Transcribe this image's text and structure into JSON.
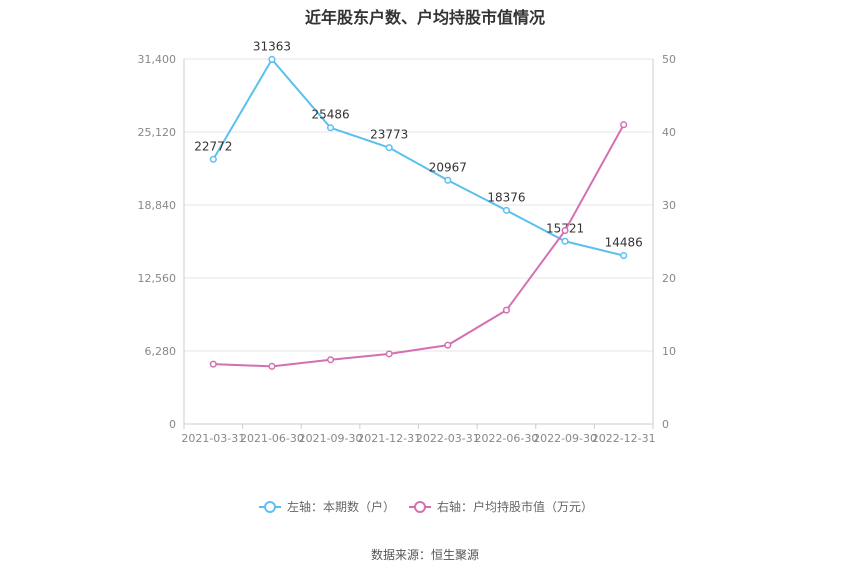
{
  "chart_data": {
    "type": "line",
    "title": "近年股东户数、户均持股市值情况",
    "categories": [
      "2021-03-31",
      "2021-06-30",
      "2021-09-30",
      "2021-12-31",
      "2022-03-31",
      "2022-06-30",
      "2022-09-30",
      "2022-12-31"
    ],
    "left_axis": {
      "min": 0,
      "max": 31400,
      "ticks": [
        "0",
        "6,280",
        "12,560",
        "18,840",
        "25,120",
        "31,400"
      ],
      "tick_values": [
        0,
        6280,
        12560,
        18840,
        25120,
        31400
      ]
    },
    "right_axis": {
      "min": 0,
      "max": 50,
      "ticks": [
        "0",
        "10",
        "20",
        "30",
        "40",
        "50"
      ],
      "tick_values": [
        0,
        10,
        20,
        30,
        40,
        50
      ]
    },
    "series": [
      {
        "name": "左轴：本期数（户）",
        "axis": "left",
        "color": "#5bc0f0",
        "values": [
          22772,
          31363,
          25486,
          23773,
          20967,
          18376,
          15721,
          14486
        ],
        "labels": [
          "22772",
          "31363",
          "25486",
          "23773",
          "20967",
          "18376",
          "15721",
          "14486"
        ]
      },
      {
        "name": "右轴：户均持股市值（万元）",
        "axis": "right",
        "color": "#d46fb2",
        "values": [
          8.2,
          7.9,
          8.8,
          9.6,
          10.8,
          15.6,
          26.5,
          41.0
        ]
      }
    ],
    "grid": true,
    "legend_position": "bottom"
  },
  "source_text": "数据来源：恒生聚源"
}
